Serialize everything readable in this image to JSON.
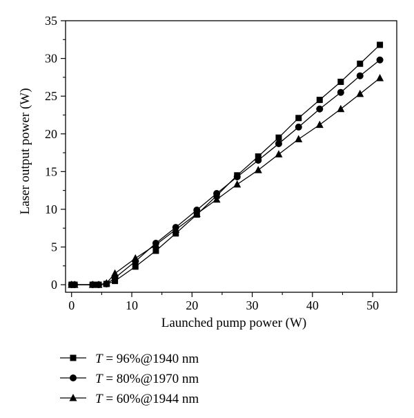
{
  "chart_data": {
    "type": "line",
    "xlabel": "Launched pump power (W)",
    "ylabel": "Laser output power (W)",
    "xlim": [
      -1,
      54
    ],
    "ylim": [
      -1,
      35
    ],
    "xticks": [
      0,
      10,
      20,
      30,
      40,
      50
    ],
    "yticks": [
      0,
      5,
      10,
      15,
      20,
      25,
      30,
      35
    ],
    "x_tick_labels": [
      "0",
      "10",
      "20",
      "30",
      "40",
      "50"
    ],
    "y_tick_labels": [
      "0",
      "5",
      "10",
      "15",
      "20",
      "25",
      "30",
      "35"
    ],
    "grid": false,
    "legend_position": "below-left",
    "series": [
      {
        "label_var": "T",
        "label_rest": " = 96%@1940 nm",
        "marker": "square",
        "x": [
          0,
          0.5,
          3.5,
          4.5,
          5.8,
          7.2,
          10.6,
          14,
          17.3,
          20.8,
          24.1,
          27.5,
          31,
          34.4,
          37.7,
          41.2,
          44.7,
          47.9,
          51.2
        ],
        "y": [
          0,
          0,
          0,
          0,
          0.1,
          0.5,
          2.4,
          4.5,
          6.8,
          9.3,
          11.8,
          14.5,
          17,
          19.5,
          22.1,
          24.5,
          26.9,
          29.3,
          31.8
        ]
      },
      {
        "label_var": "T",
        "label_rest": " = 80%@1970 nm",
        "marker": "circle",
        "x": [
          0,
          0.5,
          3.5,
          4.5,
          5.8,
          7.2,
          10.6,
          14,
          17.3,
          20.8,
          24.1,
          27.5,
          31,
          34.4,
          37.7,
          41.2,
          44.7,
          47.9,
          51.2
        ],
        "y": [
          0,
          0,
          0,
          0,
          0.1,
          0.9,
          3.1,
          5.5,
          7.6,
          9.9,
          12.1,
          14.3,
          16.5,
          18.7,
          20.9,
          23.3,
          25.5,
          27.7,
          29.8
        ]
      },
      {
        "label_var": "T",
        "label_rest": " = 60%@1944 nm",
        "marker": "triangle",
        "x": [
          0,
          0.5,
          3.5,
          4.5,
          5.8,
          7.2,
          10.6,
          14,
          17.3,
          20.8,
          24.1,
          27.5,
          31,
          34.4,
          37.7,
          41.2,
          44.7,
          47.9,
          51.2
        ],
        "y": [
          0,
          0,
          0,
          0,
          0.2,
          1.5,
          3.5,
          5.3,
          7.3,
          9.4,
          11.3,
          13.3,
          15.2,
          17.3,
          19.3,
          21.2,
          23.3,
          25.3,
          27.4
        ]
      }
    ]
  }
}
